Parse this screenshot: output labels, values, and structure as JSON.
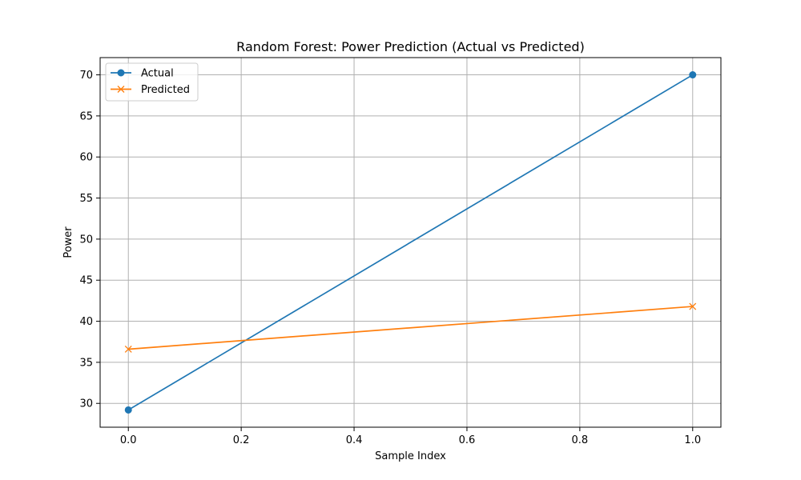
{
  "chart_data": {
    "type": "line",
    "title": "Random Forest: Power Prediction (Actual vs Predicted)",
    "xlabel": "Sample Index",
    "ylabel": "Power",
    "x": [
      0,
      1
    ],
    "xlim": [
      -0.05,
      1.05
    ],
    "ylim": [
      27.1,
      72.1
    ],
    "xticks": [
      "0.0",
      "0.2",
      "0.4",
      "0.6",
      "0.8",
      "1.0"
    ],
    "xtick_values": [
      0,
      0.2,
      0.4,
      0.6,
      0.8,
      1.0
    ],
    "yticks": [
      "30",
      "35",
      "40",
      "45",
      "50",
      "55",
      "60",
      "65",
      "70"
    ],
    "ytick_values": [
      30,
      35,
      40,
      45,
      50,
      55,
      60,
      65,
      70
    ],
    "grid": true,
    "legend_position": "top-left",
    "series": [
      {
        "name": "Actual",
        "values": [
          29.2,
          70.0
        ],
        "color": "#1f77b4",
        "marker": "circle"
      },
      {
        "name": "Predicted",
        "values": [
          36.6,
          41.8
        ],
        "color": "#ff7f0e",
        "marker": "x"
      }
    ]
  }
}
